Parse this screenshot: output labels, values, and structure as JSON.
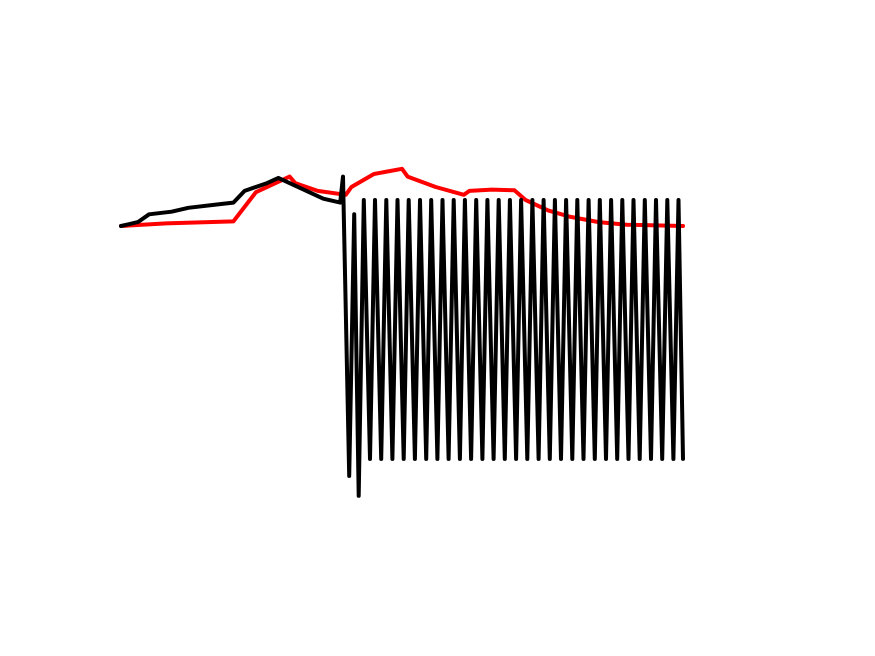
{
  "chart_data": {
    "type": "line",
    "title": "",
    "xlabel": "",
    "ylabel": "",
    "axes_visible": false,
    "grid": false,
    "legend": "none",
    "xlim": [
      0,
      100
    ],
    "ylim": [
      -100,
      100
    ],
    "series": [
      {
        "color": "#ff0000",
        "points": [
          [
            0,
            0
          ],
          [
            8,
            2
          ],
          [
            20,
            3.5
          ],
          [
            24,
            26
          ],
          [
            30,
            38
          ],
          [
            31,
            33
          ],
          [
            35,
            27
          ],
          [
            40,
            24
          ],
          [
            41,
            30
          ],
          [
            45,
            40
          ],
          [
            50,
            44
          ],
          [
            51,
            38
          ],
          [
            56,
            30
          ],
          [
            61,
            24
          ],
          [
            62,
            27
          ],
          [
            66,
            28
          ],
          [
            70,
            27.5
          ],
          [
            72,
            20
          ],
          [
            76,
            12
          ],
          [
            80,
            7
          ],
          [
            85,
            3
          ],
          [
            90,
            1
          ],
          [
            100,
            0
          ]
        ]
      },
      {
        "color": "#000000",
        "points": [
          [
            0,
            0
          ],
          [
            3,
            3
          ],
          [
            5,
            9
          ],
          [
            9,
            11
          ],
          [
            12,
            14
          ],
          [
            18,
            17
          ],
          [
            20,
            18
          ],
          [
            22,
            27
          ],
          [
            26,
            33
          ],
          [
            28,
            37
          ],
          [
            36,
            21
          ],
          [
            39,
            18
          ],
          [
            39.5,
            38
          ],
          [
            40.6,
            -88
          ],
          [
            41.5,
            9
          ],
          [
            42.3,
            -95
          ],
          [
            43.2,
            20
          ],
          [
            44.3,
            -82
          ],
          [
            45.2,
            20
          ],
          [
            46.3,
            -82
          ],
          [
            47.2,
            20
          ],
          [
            48.3,
            -82
          ],
          [
            49.2,
            20
          ],
          [
            50.3,
            -82
          ],
          [
            51.2,
            20
          ],
          [
            52.3,
            -82
          ],
          [
            53.2,
            20
          ],
          [
            54.3,
            -82
          ],
          [
            55.2,
            20
          ],
          [
            56.3,
            -82
          ],
          [
            57.2,
            20
          ],
          [
            58.3,
            -82
          ],
          [
            59.2,
            20
          ],
          [
            60.3,
            -82
          ],
          [
            61.2,
            20
          ],
          [
            62.3,
            -82
          ],
          [
            63.2,
            20
          ],
          [
            64.3,
            -82
          ],
          [
            65.2,
            20
          ],
          [
            66.3,
            -82
          ],
          [
            67.2,
            20
          ],
          [
            68.3,
            -82
          ],
          [
            69.2,
            20
          ],
          [
            70.3,
            -82
          ],
          [
            71.2,
            20
          ],
          [
            72.3,
            -82
          ],
          [
            73.2,
            20
          ],
          [
            74.3,
            -82
          ],
          [
            75.2,
            20
          ],
          [
            76.3,
            -82
          ],
          [
            77.2,
            20
          ],
          [
            78.3,
            -82
          ],
          [
            79.2,
            20
          ],
          [
            80.3,
            -82
          ],
          [
            81.2,
            20
          ],
          [
            82.3,
            -82
          ],
          [
            83.2,
            20
          ],
          [
            84.3,
            -82
          ],
          [
            85.2,
            20
          ],
          [
            86.3,
            -82
          ],
          [
            87.2,
            20
          ],
          [
            88.3,
            -82
          ],
          [
            89.2,
            20
          ],
          [
            90.3,
            -82
          ],
          [
            91.2,
            20
          ],
          [
            92.3,
            -82
          ],
          [
            93.2,
            20
          ],
          [
            94.3,
            -82
          ],
          [
            95.2,
            20
          ],
          [
            96.3,
            -82
          ],
          [
            97.2,
            20
          ],
          [
            98.3,
            -82
          ],
          [
            99.2,
            20
          ],
          [
            100,
            -82
          ]
        ]
      }
    ]
  }
}
